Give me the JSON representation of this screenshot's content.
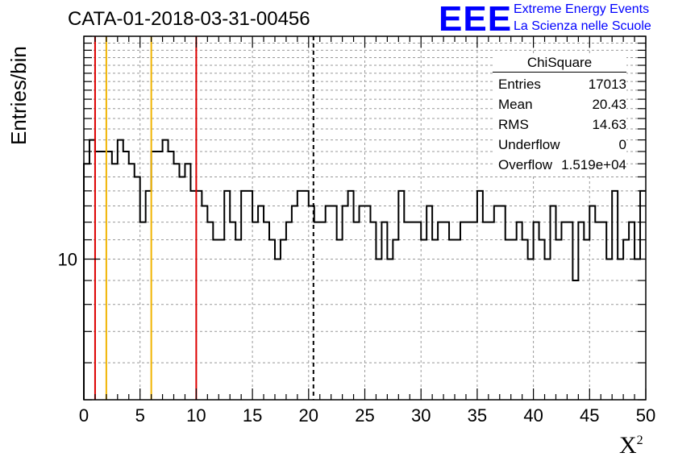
{
  "title": "CATA-01-2018-03-31-00456",
  "logo": {
    "mark": "EEE",
    "line1": "Extreme Energy Events",
    "line2": "La Scienza nelle Scuole",
    "color": "#0000ff"
  },
  "stats_box": {
    "title": "ChiSquare",
    "rows": [
      {
        "label": "Entries",
        "value": "17013"
      },
      {
        "label": "Mean",
        "value": "20.43"
      },
      {
        "label": "RMS",
        "value": "14.63"
      },
      {
        "label": "Underflow",
        "value": "0"
      },
      {
        "label": "Overflow",
        "value": "1.519e+04"
      }
    ]
  },
  "chart_data": {
    "type": "histogram",
    "title": "CATA-01-2018-03-31-00456",
    "xlabel": "X²",
    "ylabel": "Entries/bin",
    "xlim": [
      0,
      50
    ],
    "ylim": [
      5,
      30
    ],
    "yscale": "log",
    "grid": true,
    "bin_width": 0.5,
    "x_ticks": [
      0,
      5,
      10,
      15,
      20,
      25,
      30,
      35,
      40,
      45,
      50
    ],
    "y_tick_label": "10",
    "values": [
      16,
      18,
      17,
      17,
      17,
      16,
      18,
      17,
      16,
      15,
      12,
      14,
      17,
      17,
      18,
      17,
      16,
      15,
      16,
      14,
      14,
      13,
      12,
      11,
      11,
      14,
      12,
      11,
      14,
      14,
      12,
      13,
      12,
      11,
      10,
      11,
      12,
      13,
      14,
      14,
      13,
      12,
      12,
      13,
      13,
      11,
      13,
      14,
      12,
      13,
      13,
      12,
      10,
      12,
      10,
      11,
      14,
      12,
      12,
      12,
      11,
      13,
      11,
      12,
      12,
      11,
      11,
      12,
      12,
      12,
      14,
      12,
      12,
      13,
      13,
      11,
      11,
      12,
      11,
      10,
      12,
      11,
      10,
      13,
      11,
      12,
      12,
      9,
      12,
      11,
      13,
      12,
      12,
      10,
      14,
      10,
      11,
      12,
      10,
      14
    ],
    "values_note": "",
    "vertical_lines": [
      {
        "x": 1,
        "color": "#dd0000",
        "style": "solid"
      },
      {
        "x": 2,
        "color": "#f0b400",
        "style": "solid"
      },
      {
        "x": 6,
        "color": "#f0b400",
        "style": "solid"
      },
      {
        "x": 10,
        "color": "#dd0000",
        "style": "solid"
      },
      {
        "x": 20.43,
        "color": "#000000",
        "style": "dashed"
      }
    ],
    "legend": "top-right"
  }
}
